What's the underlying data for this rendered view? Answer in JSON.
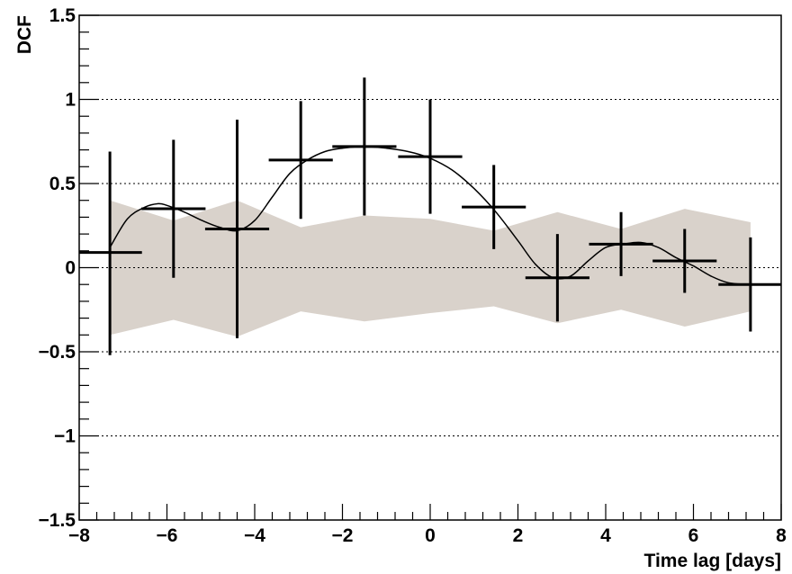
{
  "chart_data": {
    "type": "scatter",
    "xlabel": "Time lag [days]",
    "ylabel": "DCF",
    "xlim": [
      -8,
      8
    ],
    "ylim": [
      -1.5,
      1.5
    ],
    "x_ticks": [
      -8,
      -6,
      -4,
      -2,
      0,
      2,
      4,
      6,
      8
    ],
    "x_tick_labels": [
      "−8",
      "−6",
      "−4",
      "−2",
      "0",
      "2",
      "4",
      "6",
      "8"
    ],
    "y_ticks": [
      -1.5,
      -1,
      -0.5,
      0,
      0.5,
      1,
      1.5
    ],
    "y_tick_labels": [
      "−1.5",
      "−1",
      "−0.5",
      "0",
      "0.5",
      "1",
      "1.5"
    ],
    "grid": "horizontal dotted",
    "colors": {
      "points": "#000000",
      "band": "#d9d2cb",
      "curve": "#000000"
    },
    "points": [
      {
        "x": -7.3,
        "y": 0.09,
        "xerr": 0.73,
        "yerr_lo": 0.61,
        "yerr_hi": 0.6
      },
      {
        "x": -5.85,
        "y": 0.35,
        "xerr": 0.73,
        "yerr_lo": 0.41,
        "yerr_hi": 0.41
      },
      {
        "x": -4.4,
        "y": 0.23,
        "xerr": 0.73,
        "yerr_lo": 0.65,
        "yerr_hi": 0.65
      },
      {
        "x": -2.95,
        "y": 0.64,
        "xerr": 0.73,
        "yerr_lo": 0.35,
        "yerr_hi": 0.35
      },
      {
        "x": -1.5,
        "y": 0.72,
        "xerr": 0.73,
        "yerr_lo": 0.41,
        "yerr_hi": 0.41
      },
      {
        "x": 0.0,
        "y": 0.66,
        "xerr": 0.73,
        "yerr_lo": 0.34,
        "yerr_hi": 0.34
      },
      {
        "x": 1.45,
        "y": 0.36,
        "xerr": 0.73,
        "yerr_lo": 0.25,
        "yerr_hi": 0.25
      },
      {
        "x": 2.9,
        "y": -0.06,
        "xerr": 0.73,
        "yerr_lo": 0.26,
        "yerr_hi": 0.26
      },
      {
        "x": 4.35,
        "y": 0.14,
        "xerr": 0.73,
        "yerr_lo": 0.19,
        "yerr_hi": 0.19
      },
      {
        "x": 5.8,
        "y": 0.04,
        "xerr": 0.73,
        "yerr_lo": 0.19,
        "yerr_hi": 0.19
      },
      {
        "x": 7.3,
        "y": -0.1,
        "xerr": 0.73,
        "yerr_lo": 0.28,
        "yerr_hi": 0.28
      }
    ],
    "band": {
      "x": [
        -7.3,
        -5.85,
        -4.4,
        -2.95,
        -1.5,
        0.0,
        1.45,
        2.9,
        4.35,
        5.8,
        7.3
      ],
      "upper": [
        0.4,
        0.28,
        0.4,
        0.24,
        0.31,
        0.29,
        0.22,
        0.33,
        0.23,
        0.35,
        0.27
      ],
      "lower": [
        -0.4,
        -0.31,
        -0.41,
        -0.26,
        -0.32,
        -0.27,
        -0.23,
        -0.33,
        -0.25,
        -0.35,
        -0.26
      ]
    },
    "curve": {
      "x": [
        -7.3,
        -6.9,
        -6.5,
        -6.2,
        -6.0,
        -5.6,
        -5.2,
        -4.8,
        -4.4,
        -4.0,
        -3.6,
        -3.2,
        -2.8,
        -2.4,
        -2.0,
        -1.5,
        -1.0,
        -0.5,
        0.0,
        0.5,
        1.0,
        1.5,
        2.0,
        2.4,
        2.8,
        3.2,
        3.6,
        4.0,
        4.4,
        4.8,
        5.2,
        5.6,
        6.0,
        6.4,
        6.8,
        7.3
      ],
      "y": [
        0.12,
        0.29,
        0.36,
        0.38,
        0.37,
        0.33,
        0.28,
        0.24,
        0.22,
        0.28,
        0.42,
        0.56,
        0.64,
        0.69,
        0.71,
        0.72,
        0.71,
        0.69,
        0.65,
        0.58,
        0.47,
        0.33,
        0.16,
        0.02,
        -0.06,
        -0.05,
        0.04,
        0.12,
        0.14,
        0.15,
        0.12,
        0.06,
        0.01,
        -0.05,
        -0.09,
        -0.1
      ]
    }
  }
}
